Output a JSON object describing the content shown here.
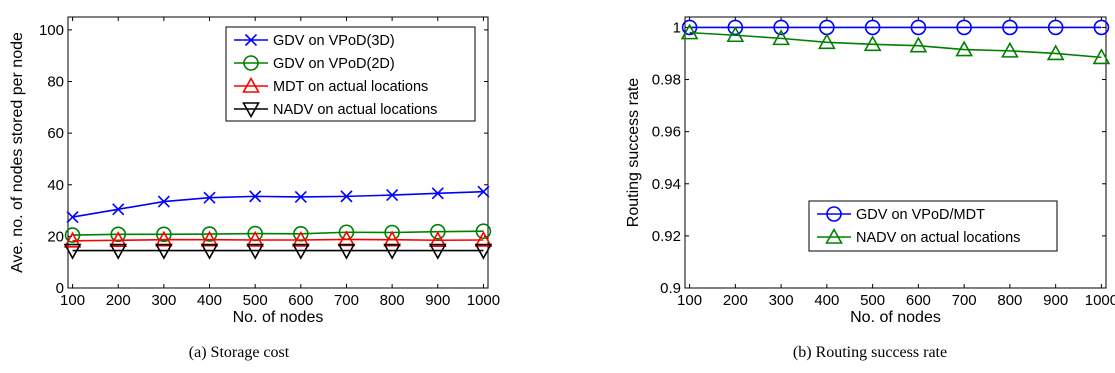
{
  "chart_data": [
    {
      "type": "line",
      "caption": "(a) Storage cost",
      "xlabel": "No. of nodes",
      "ylabel": "Ave. no. of nodes stored per node",
      "x": [
        100,
        200,
        300,
        400,
        500,
        600,
        700,
        800,
        900,
        1000
      ],
      "xlim": [
        90,
        1010
      ],
      "ylim": [
        0,
        105
      ],
      "yticks": [
        0,
        20,
        40,
        60,
        80,
        100
      ],
      "legend_position": "top-right",
      "series": [
        {
          "name": "GDV on VPoD(3D)",
          "color": "#0000ff",
          "marker": "x",
          "values": [
            27.5,
            30.5,
            33.5,
            35,
            35.5,
            35.3,
            35.5,
            36,
            36.7,
            37.3
          ]
        },
        {
          "name": "GDV on VPoD(2D)",
          "color": "#008000",
          "marker": "circle",
          "values": [
            20.5,
            20.8,
            20.8,
            20.9,
            21.1,
            21,
            21.6,
            21.5,
            21.8,
            22
          ]
        },
        {
          "name": "MDT on actual locations",
          "color": "#ff0000",
          "marker": "triangle-up",
          "values": [
            18.3,
            18.5,
            18.7,
            18.7,
            18.6,
            18.6,
            18.8,
            18.7,
            18.5,
            18.6
          ]
        },
        {
          "name": "NADV on actual locations",
          "color": "#000000",
          "marker": "triangle-down",
          "values": [
            14.5,
            14.5,
            14.5,
            14.5,
            14.5,
            14.5,
            14.5,
            14.5,
            14.5,
            14.5
          ]
        }
      ]
    },
    {
      "type": "line",
      "caption": "(b) Routing success rate",
      "xlabel": "No. of nodes",
      "ylabel": "Routing success rate",
      "x": [
        100,
        200,
        300,
        400,
        500,
        600,
        700,
        800,
        900,
        1000
      ],
      "xlim": [
        90,
        1010
      ],
      "ylim": [
        0.9,
        1.004
      ],
      "yticks": [
        0.9,
        0.92,
        0.94,
        0.96,
        0.98,
        1
      ],
      "ytick_labels": [
        "0.9",
        "0.92",
        "0.94",
        "0.96",
        "0.98",
        "1"
      ],
      "legend_position": "bottom-right",
      "series": [
        {
          "name": "GDV on VPoD/MDT",
          "color": "#0000ff",
          "marker": "circle",
          "values": [
            1,
            1,
            1,
            1,
            1,
            1,
            1,
            1,
            1,
            1
          ]
        },
        {
          "name": "NADV on actual locations",
          "color": "#008000",
          "marker": "triangle-up",
          "values": [
            0.998,
            0.997,
            0.9958,
            0.9943,
            0.9935,
            0.993,
            0.9915,
            0.991,
            0.99,
            0.9885
          ]
        }
      ]
    }
  ]
}
